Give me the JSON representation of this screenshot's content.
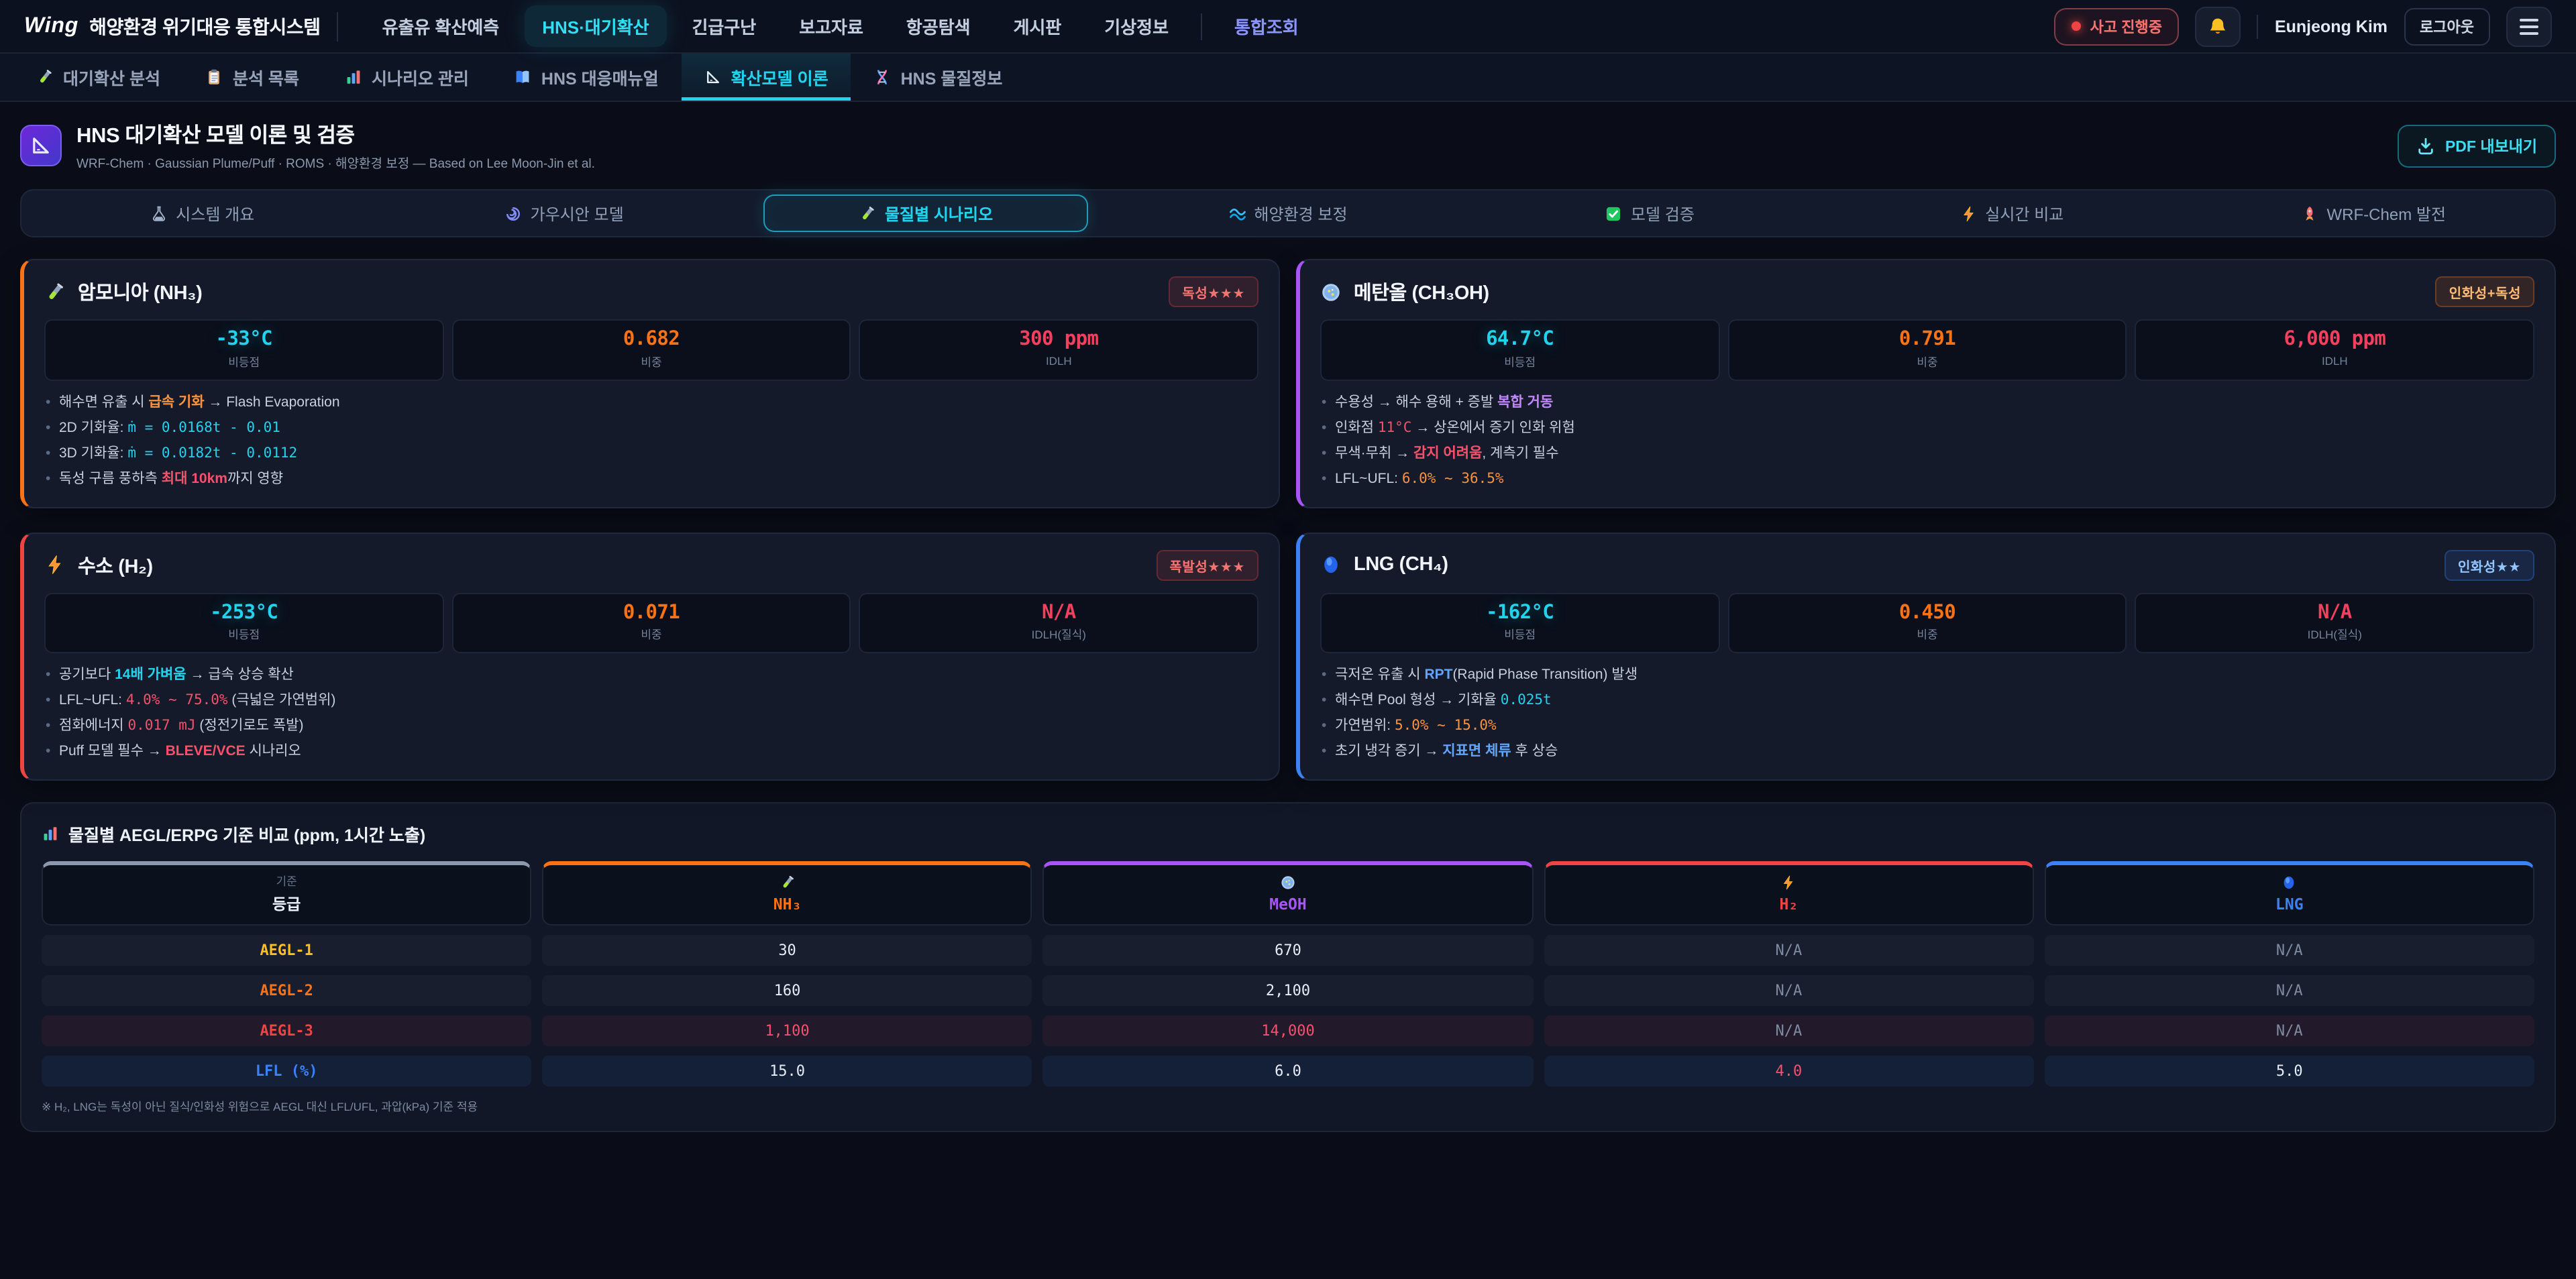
{
  "brand": {
    "logo": "Wing",
    "title": "해양환경 위기대응 통합시스템"
  },
  "topnav": {
    "items": [
      {
        "label": "유출유 확산예측"
      },
      {
        "label": "HNS·대기확산",
        "active": true
      },
      {
        "label": "긴급구난"
      },
      {
        "label": "보고자료"
      },
      {
        "label": "항공탐색"
      },
      {
        "label": "게시판"
      },
      {
        "label": "기상정보"
      },
      {
        "label": "통합조회",
        "accent": true,
        "divider_before": true
      }
    ],
    "alert": "사고 진행중",
    "user": "Eunjeong Kim",
    "logout": "로그아웃"
  },
  "subnav": {
    "items": [
      {
        "icon": "tube",
        "label": "대기확산 분석"
      },
      {
        "icon": "clipboard",
        "label": "분석 목록"
      },
      {
        "icon": "chart",
        "label": "시나리오 관리"
      },
      {
        "icon": "book",
        "label": "HNS 대응매뉴얼"
      },
      {
        "icon": "ruler",
        "label": "확산모델 이론",
        "active": true
      },
      {
        "icon": "dna",
        "label": "HNS 물질정보"
      }
    ]
  },
  "header": {
    "title": "HNS 대기확산 모델 이론 및 검증",
    "subtitle": "WRF-Chem · Gaussian Plume/Puff · ROMS · 해양환경 보정 — Based on Lee Moon-Jin et al.",
    "pdf_label": "PDF 내보내기"
  },
  "tabs": [
    {
      "icon": "alembic",
      "label": "시스템 개요"
    },
    {
      "icon": "cyclone",
      "label": "가우시안 모델"
    },
    {
      "icon": "tube",
      "label": "물질별 시나리오",
      "active": true
    },
    {
      "icon": "wave",
      "label": "해양환경 보정"
    },
    {
      "icon": "check",
      "label": "모델 검증"
    },
    {
      "icon": "bolt",
      "label": "실시간 비교"
    },
    {
      "icon": "rocket",
      "label": "WRF-Chem 발전"
    }
  ],
  "cards": [
    {
      "id": "nh3",
      "icon": "tube",
      "title": "암모니아 (NH₃)",
      "accent": "#f97316",
      "badge": {
        "label": "독성★★★",
        "variant": "red"
      },
      "stats": [
        {
          "value": "-33°C",
          "label": "비등점",
          "tone": "temp"
        },
        {
          "value": "0.682",
          "label": "비중",
          "tone": "orange"
        },
        {
          "value": "300 ppm",
          "label": "IDLH",
          "tone": "red"
        }
      ],
      "bullets": [
        [
          {
            "t": "해수면 유출 시 "
          },
          {
            "t": "급속 기화",
            "c": "or",
            "b": 1
          },
          {
            "t": " → Flash Evaporation"
          }
        ],
        [
          {
            "t": "2D 기화율: "
          },
          {
            "t": "ṁ = 0.0168t - 0.01",
            "c": "cy",
            "m": 1
          }
        ],
        [
          {
            "t": "3D 기화율: "
          },
          {
            "t": "ṁ = 0.0182t - 0.0112",
            "c": "cy",
            "m": 1
          }
        ],
        [
          {
            "t": "독성 구름 풍하측 "
          },
          {
            "t": "최대 10km",
            "c": "rd",
            "b": 1
          },
          {
            "t": "까지 영향"
          }
        ]
      ]
    },
    {
      "id": "meoh",
      "icon": "petri",
      "title": "메탄올 (CH₃OH)",
      "accent": "#a855f7",
      "badge": {
        "label": "인화성+독성",
        "variant": "orange"
      },
      "stats": [
        {
          "value": "64.7°C",
          "label": "비등점",
          "tone": "temp"
        },
        {
          "value": "0.791",
          "label": "비중",
          "tone": "orange"
        },
        {
          "value": "6,000 ppm",
          "label": "IDLH",
          "tone": "red"
        }
      ],
      "bullets": [
        [
          {
            "t": "수용성 → 해수 용해 + 증발 "
          },
          {
            "t": "복합 거동",
            "c": "pu",
            "b": 1
          }
        ],
        [
          {
            "t": "인화점 "
          },
          {
            "t": "11°C",
            "c": "rd",
            "m": 1
          },
          {
            "t": " → 상온에서 증기 인화 위험"
          }
        ],
        [
          {
            "t": "무색·무취 → "
          },
          {
            "t": "감지 어려움",
            "c": "rd",
            "b": 1
          },
          {
            "t": ", 계측기 필수"
          }
        ],
        [
          {
            "t": "LFL~UFL: "
          },
          {
            "t": "6.0% ~ 36.5%",
            "c": "or",
            "m": 1
          }
        ]
      ]
    },
    {
      "id": "h2",
      "icon": "bolt",
      "title": "수소 (H₂)",
      "accent": "#ef4444",
      "badge": {
        "label": "폭발성★★★",
        "variant": "red"
      },
      "stats": [
        {
          "value": "-253°C",
          "label": "비등점",
          "tone": "temp"
        },
        {
          "value": "0.071",
          "label": "비중",
          "tone": "orange"
        },
        {
          "value": "N/A",
          "label": "IDLH(질식)",
          "tone": "red"
        }
      ],
      "bullets": [
        [
          {
            "t": "공기보다 "
          },
          {
            "t": "14배 가벼움",
            "c": "cy",
            "b": 1
          },
          {
            "t": " → 급속 상승 확산"
          }
        ],
        [
          {
            "t": "LFL~UFL: "
          },
          {
            "t": "4.0% ~ 75.0%",
            "c": "rd",
            "m": 1
          },
          {
            "t": " (극넓은 가연범위)"
          }
        ],
        [
          {
            "t": "점화에너지 "
          },
          {
            "t": "0.017 mJ",
            "c": "rd",
            "m": 1
          },
          {
            "t": " (정전기로도 폭발)"
          }
        ],
        [
          {
            "t": "Puff 모델 필수 → "
          },
          {
            "t": "BLEVE/VCE",
            "c": "rd",
            "b": 1
          },
          {
            "t": " 시나리오"
          }
        ]
      ]
    },
    {
      "id": "lng",
      "icon": "sphere",
      "title": "LNG (CH₄)",
      "accent": "#3b82f6",
      "badge": {
        "label": "인화성★★",
        "variant": "blue"
      },
      "stats": [
        {
          "value": "-162°C",
          "label": "비등점",
          "tone": "temp"
        },
        {
          "value": "0.450",
          "label": "비중",
          "tone": "orange"
        },
        {
          "value": "N/A",
          "label": "IDLH(질식)",
          "tone": "red"
        }
      ],
      "bullets": [
        [
          {
            "t": "극저온 유출 시 "
          },
          {
            "t": "RPT",
            "c": "bl",
            "b": 1
          },
          {
            "t": "(Rapid Phase Transition) 발생"
          }
        ],
        [
          {
            "t": "해수면 Pool 형성 → 기화율 "
          },
          {
            "t": "0.025t",
            "c": "cy",
            "m": 1
          }
        ],
        [
          {
            "t": "가연범위: "
          },
          {
            "t": "5.0% ~ 15.0%",
            "c": "or",
            "m": 1
          }
        ],
        [
          {
            "t": "초기 냉각 증기 → "
          },
          {
            "t": "지표면 체류",
            "c": "bl",
            "b": 1
          },
          {
            "t": " 후 상승"
          }
        ]
      ]
    }
  ],
  "table": {
    "title": "물질별 AEGL/ERPG 기준 비교 (ppm, 1시간 노출)",
    "corner": {
      "small": "기준",
      "label": "등급",
      "color": "#8b98ad"
    },
    "columns": [
      {
        "icon": "tube",
        "label": "NH₃",
        "color": "#f97316"
      },
      {
        "icon": "petri",
        "label": "MeOH",
        "color": "#a855f7"
      },
      {
        "icon": "bolt",
        "label": "H₂",
        "color": "#ef4444"
      },
      {
        "icon": "sphere",
        "label": "LNG",
        "color": "#3b82f6"
      }
    ],
    "rows": [
      {
        "label": "AEGL-1",
        "color": "#fbbf24",
        "values": [
          {
            "v": "30"
          },
          {
            "v": "670"
          },
          {
            "v": "N/A",
            "tone": "dim"
          },
          {
            "v": "N/A",
            "tone": "dim"
          }
        ]
      },
      {
        "label": "AEGL-2",
        "color": "#f97316",
        "values": [
          {
            "v": "160"
          },
          {
            "v": "2,100"
          },
          {
            "v": "N/A",
            "tone": "dim"
          },
          {
            "v": "N/A",
            "tone": "dim"
          }
        ]
      },
      {
        "label": "AEGL-3",
        "color": "#ef4444",
        "tint": "red",
        "values": [
          {
            "v": "1,100",
            "tone": "red"
          },
          {
            "v": "14,000",
            "tone": "red"
          },
          {
            "v": "N/A",
            "tone": "dim"
          },
          {
            "v": "N/A",
            "tone": "dim"
          }
        ]
      },
      {
        "label": "LFL (%)",
        "color": "#3b82f6",
        "tint": "blue",
        "values": [
          {
            "v": "15.0"
          },
          {
            "v": "6.0"
          },
          {
            "v": "4.0",
            "tone": "red"
          },
          {
            "v": "5.0"
          }
        ]
      }
    ],
    "footnote": "※ H₂, LNG는 독성이 아닌 질식/인화성 위험으로 AEGL 대신 LFL/UFL, 과압(kPa) 기준 적용"
  },
  "palette": {
    "accent_cyan": "#22d3ee",
    "alert_red": "#ef4444",
    "panel": "#141a2a",
    "background": "#0a0d17"
  }
}
